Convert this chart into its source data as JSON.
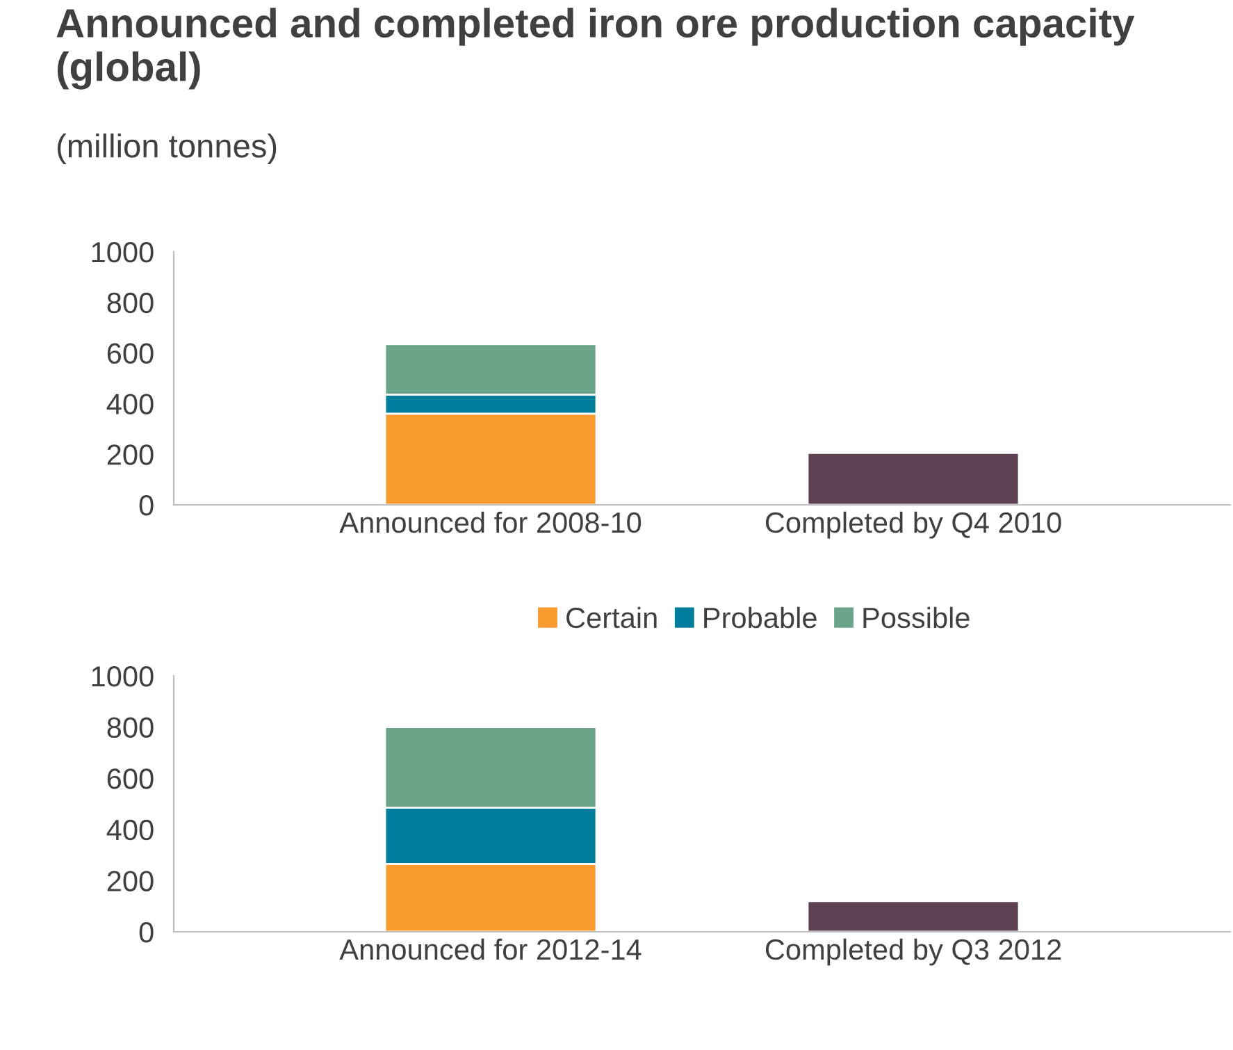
{
  "chart_data": [
    {
      "type": "bar",
      "title": "Announced and completed iron ore production capacity (global)",
      "subtitle": "(million tonnes)",
      "categories": [
        "Announced for 2008-10",
        "Completed by Q4 2010"
      ],
      "stacked": true,
      "series": [
        {
          "name": "Certain",
          "color": "#f89c30",
          "values": [
            360,
            null
          ]
        },
        {
          "name": "Probable",
          "color": "#007c9c",
          "values": [
            75,
            null
          ]
        },
        {
          "name": "Possible",
          "color": "#6aa589",
          "values": [
            200,
            null
          ]
        },
        {
          "color": "#5e4153",
          "values": [
            null,
            205
          ]
        }
      ],
      "ylim": [
        0,
        1000
      ],
      "yticks": [
        0,
        200,
        400,
        600,
        800,
        1000
      ],
      "grid": false,
      "legend": "bottom"
    },
    {
      "type": "bar",
      "categories": [
        "Announced for 2012-14",
        "Completed by Q3 2012"
      ],
      "stacked": true,
      "series": [
        {
          "color": "#f89c30",
          "values": [
            265,
            null
          ]
        },
        {
          "color": "#007c9c",
          "values": [
            220,
            null
          ]
        },
        {
          "color": "#6aa589",
          "values": [
            315,
            null
          ]
        },
        {
          "color": "#5e4153",
          "values": [
            null,
            120
          ]
        }
      ],
      "ylim": [
        0,
        1000
      ],
      "yticks": [
        0,
        200,
        400,
        600,
        800,
        1000
      ],
      "grid": false
    }
  ]
}
